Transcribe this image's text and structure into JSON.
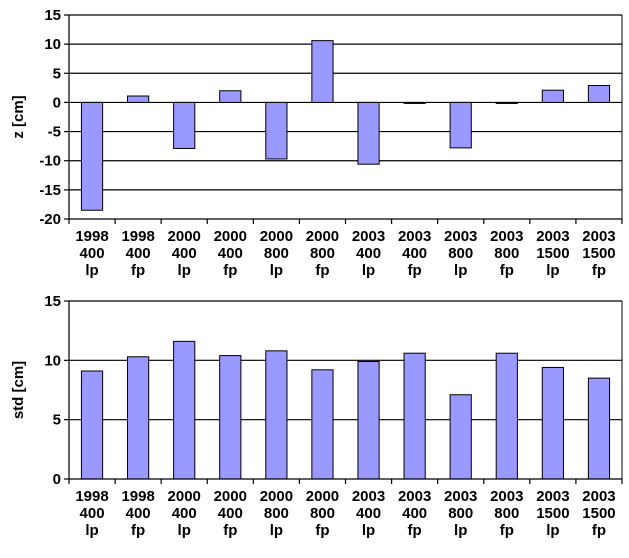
{
  "chart_data": [
    {
      "type": "bar",
      "title": "",
      "xlabel": "",
      "ylabel": "z [cm]",
      "ylim": [
        -20,
        15
      ],
      "yticks": [
        15,
        10,
        5,
        0,
        -5,
        -10,
        -15,
        -20
      ],
      "grid": true,
      "categories": [
        [
          "1998",
          "400",
          "lp"
        ],
        [
          "1998",
          "400",
          "fp"
        ],
        [
          "2000",
          "400",
          "lp"
        ],
        [
          "2000",
          "400",
          "fp"
        ],
        [
          "2000",
          "800",
          "lp"
        ],
        [
          "2000",
          "800",
          "fp"
        ],
        [
          "2003",
          "400",
          "lp"
        ],
        [
          "2003",
          "400",
          "fp"
        ],
        [
          "2003",
          "800",
          "lp"
        ],
        [
          "2003",
          "800",
          "fp"
        ],
        [
          "2003",
          "1500",
          "lp"
        ],
        [
          "2003",
          "1500",
          "fp"
        ]
      ],
      "values": [
        -18.5,
        1.1,
        -7.9,
        2.0,
        -9.7,
        10.6,
        -10.6,
        -0.1,
        -7.8,
        -0.1,
        2.1,
        2.9
      ],
      "bar_color": "#9999ff"
    },
    {
      "type": "bar",
      "title": "",
      "xlabel": "",
      "ylabel": "std [cm]",
      "ylim": [
        0,
        15
      ],
      "yticks": [
        15,
        10,
        5,
        0
      ],
      "grid": true,
      "categories": [
        [
          "1998",
          "400",
          "lp"
        ],
        [
          "1998",
          "400",
          "fp"
        ],
        [
          "2000",
          "400",
          "lp"
        ],
        [
          "2000",
          "400",
          "fp"
        ],
        [
          "2000",
          "800",
          "lp"
        ],
        [
          "2000",
          "800",
          "fp"
        ],
        [
          "2003",
          "400",
          "lp"
        ],
        [
          "2003",
          "400",
          "fp"
        ],
        [
          "2003",
          "800",
          "lp"
        ],
        [
          "2003",
          "800",
          "fp"
        ],
        [
          "2003",
          "1500",
          "lp"
        ],
        [
          "2003",
          "1500",
          "fp"
        ]
      ],
      "values": [
        9.1,
        10.3,
        11.6,
        10.4,
        10.8,
        9.2,
        9.9,
        10.6,
        7.1,
        10.6,
        9.4,
        8.5
      ],
      "bar_color": "#9999ff"
    }
  ]
}
